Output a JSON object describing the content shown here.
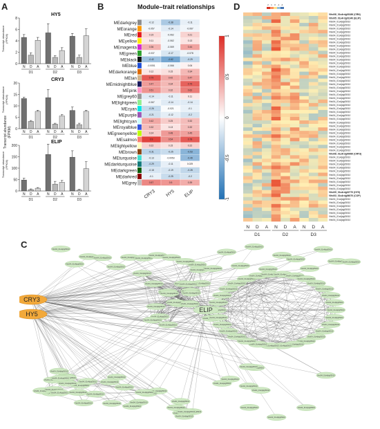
{
  "panels": {
    "a": "A",
    "b": "B",
    "c": "C",
    "d": "D"
  },
  "panel_a": {
    "ylabel": "Transcript abundance\n(FPKM)",
    "ylabel_line1": "Transcript abundance",
    "ylabel_line2": "(FPKM)",
    "bar_labels": [
      "N",
      "D",
      "A",
      "N",
      "D",
      "A",
      "N",
      "D",
      "A"
    ],
    "groups": [
      "D1",
      "D2",
      "D3"
    ],
    "colors": {
      "N": "#707070",
      "D": "#b8b8b8",
      "A": "#d4d4d4"
    },
    "charts": [
      {
        "gene": "HY5",
        "ticks": [
          0,
          2,
          4,
          6,
          8
        ],
        "ylim": [
          0,
          8
        ],
        "values": [
          4.6,
          1.5,
          4.1,
          5.4,
          1.1,
          2.3,
          4.8,
          1.1,
          4.9
        ],
        "errors": [
          0.5,
          0.4,
          0.5,
          1.6,
          0.3,
          0.5,
          0.5,
          0.4,
          1.2
        ]
      },
      {
        "gene": "CRY3",
        "ticks": [
          0,
          5,
          10,
          15,
          20
        ],
        "ylim": [
          0,
          20
        ],
        "values": [
          13.2,
          3.2,
          7.6,
          13.6,
          2.0,
          5.6,
          8.0,
          1.8,
          7.6
        ],
        "errors": [
          0.6,
          0.4,
          0.5,
          3.5,
          0.4,
          0.6,
          1.5,
          0.6,
          0.5
        ]
      },
      {
        "gene": "ELIP",
        "ticks": [
          0,
          50,
          100,
          150,
          200
        ],
        "ylim": [
          0,
          200
        ],
        "values": [
          48,
          6,
          12,
          160,
          30,
          38,
          148,
          4,
          98
        ],
        "errors": [
          8,
          3,
          3,
          45,
          12,
          8,
          28,
          3,
          30
        ]
      }
    ]
  },
  "panel_b": {
    "title": "Module–trait relationships",
    "traits": [
      "CRY3",
      "HY5",
      "ELIP"
    ],
    "colorbar_ticks": [
      "1",
      "0.5",
      "0",
      "-0.5",
      "-1"
    ],
    "modules": [
      {
        "name": "MEdarkgrey",
        "color": "#8c8c8c",
        "r": [
          -0.12,
          -0.38,
          -0.11
        ]
      },
      {
        "name": "MEorange",
        "color": "#ff9900",
        "r": [
          -0.057,
          -0.14,
          -0.067
        ]
      },
      {
        "name": "MEred",
        "color": "#e41a1c",
        "r": [
          0.19,
          -0.062,
          0.21
        ]
      },
      {
        "name": "MEyellow",
        "color": "#ffea00",
        "r": [
          0.11,
          -0.062,
          0.13
        ]
      },
      {
        "name": "MEmagenta",
        "color": "#d12bd1",
        "r": [
          0.36,
          -0.069,
          0.44
        ]
      },
      {
        "name": "MEgreen",
        "color": "#2ca02c",
        "r": [
          -0.037,
          -0.17,
          -0.078
        ]
      },
      {
        "name": "MEblack",
        "color": "#111111",
        "r": [
          -0.42,
          -0.62,
          -0.29
        ]
      },
      {
        "name": "MEblue",
        "color": "#1f4fd6",
        "r": [
          -0.0051,
          -0.066,
          0.06
        ]
      },
      {
        "name": "MEdarkorange",
        "color": "#e06a00",
        "r": [
          0.12,
          0.15,
          0.34
        ]
      },
      {
        "name": "MEtan",
        "color": "#d2b48c",
        "r": [
          0.79,
          0.42,
          0.47
        ]
      },
      {
        "name": "MEmidnightblue",
        "color": "#1a1a5e",
        "r": [
          0.47,
          0.34,
          0.75
        ]
      },
      {
        "name": "MEpink",
        "color": "#ff99cc",
        "r": [
          0.51,
          0.32,
          0.62
        ]
      },
      {
        "name": "MEgrey60",
        "color": "#999999",
        "r": [
          -0.14,
          -0.11,
          0.11
        ]
      },
      {
        "name": "MElightgreen",
        "color": "#90ee90",
        "r": [
          -0.067,
          -0.14,
          -0.14
        ]
      },
      {
        "name": "MEcyan",
        "color": "#00e5e5",
        "r": [
          -0.26,
          -0.021,
          -0.1
        ]
      },
      {
        "name": "MEpurple",
        "color": "#9b59b6",
        "r": [
          -0.21,
          -0.12,
          -0.2
        ]
      },
      {
        "name": "MElightcyan",
        "color": "#ccffff",
        "r": [
          0.42,
          0.25,
          0.32
        ]
      },
      {
        "name": "MEroyalblue",
        "color": "#3355dd",
        "r": [
          0.32,
          0.13,
          0.32
        ]
      },
      {
        "name": "MEgreenyellow",
        "color": "#bfff00",
        "r": [
          0.24,
          0.48,
          0.45
        ]
      },
      {
        "name": "MEsalmon",
        "color": "#fa8072",
        "r": [
          0.9,
          0.54,
          0.78
        ]
      },
      {
        "name": "MElightyellow",
        "color": "#ffffc0",
        "r": [
          0.22,
          0.15,
          0.22
        ]
      },
      {
        "name": "MEbrown",
        "color": "#8b4513",
        "r": [
          -0.31,
          -0.25,
          -0.53
        ]
      },
      {
        "name": "MEturquoise",
        "color": "#40e0d0",
        "r": [
          -0.13,
          -0.0053,
          -0.49
        ]
      },
      {
        "name": "MEdarkturquoise",
        "color": "#137b7b",
        "r": [
          -0.29,
          -0.11,
          0.029
        ]
      },
      {
        "name": "MEdarkgreen",
        "color": "#0a5c0a",
        "r": [
          -0.18,
          -0.19,
          -0.28
        ]
      },
      {
        "name": "MEdarkred",
        "color": "#8b0000",
        "r": [
          -0.1,
          -0.25,
          -0.2
        ]
      },
      {
        "name": "MEgrey",
        "color": "#bebebe",
        "r": [
          0.57,
          0.5,
          0.39
        ]
      }
    ]
  },
  "panel_c": {
    "hubs": [
      "CRY3",
      "HY5",
      "ELIP"
    ],
    "node_label": "Vitvi04_01s4jdg05010"
  },
  "panel_d": {
    "scale_ticks": [
      "2",
      "1",
      "0",
      "-1",
      "-2"
    ],
    "cols": [
      "N",
      "D",
      "A",
      "N",
      "D",
      "A",
      "N",
      "D",
      "A"
    ],
    "groups": [
      "D1",
      "D2",
      "D3"
    ],
    "highlight_labels": [
      "Vitvi08_01s4rdg03186 (CRN)",
      "Vitvi05_01s4rdg01340 (ELIP)",
      "Vitvi08_01s4rdg00990 (CRY3)",
      "Vitvi05_01s4rdg02770 (HY5)",
      "Vitvi03_01s4rdg06070 (COP)"
    ],
    "gene_label": "Vitvi04_01s4jdg05010"
  }
}
